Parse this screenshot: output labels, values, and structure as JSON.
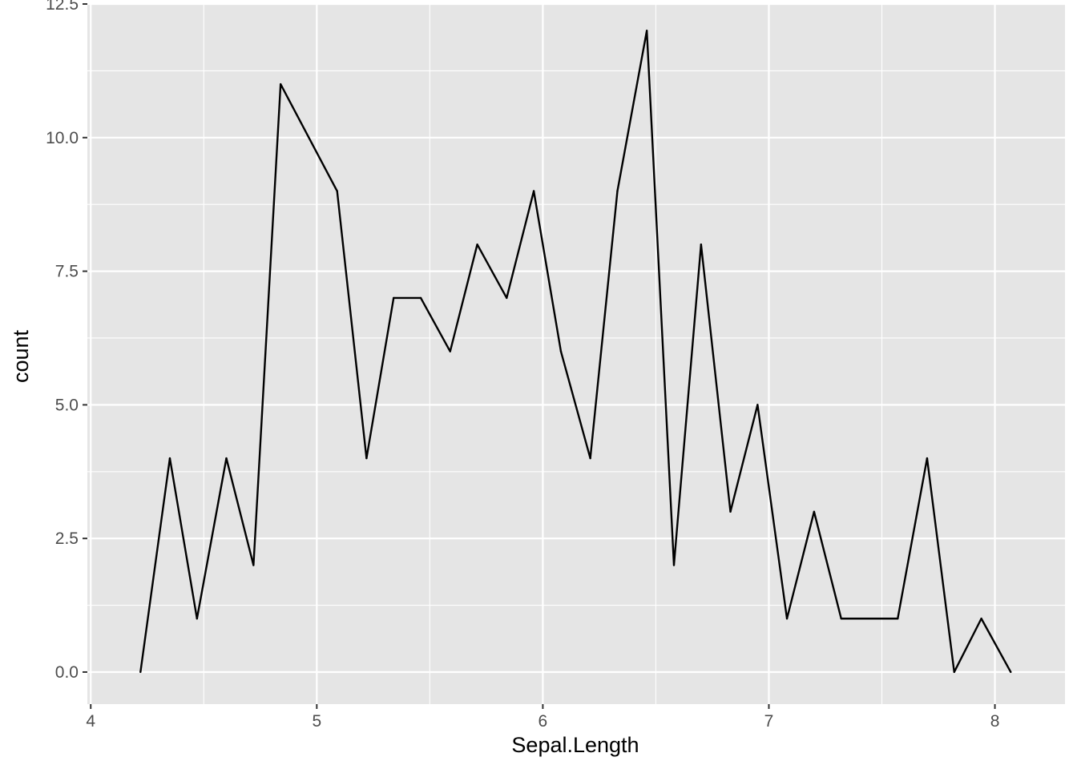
{
  "chart_data": {
    "type": "line",
    "title": "",
    "xlabel": "Sepal.Length",
    "ylabel": "count",
    "xlim": [
      3.985,
      8.31
    ],
    "ylim": [
      -0.6,
      12.5
    ],
    "x_ticks": [
      4,
      5,
      6,
      7,
      8
    ],
    "x_tick_labels": [
      "4",
      "5",
      "6",
      "7",
      "8"
    ],
    "y_ticks": [
      0,
      2.5,
      5,
      7.5,
      10,
      12.5
    ],
    "y_tick_labels": [
      "0.0",
      "2.5",
      "5.0",
      "7.5",
      "10.0",
      "12.5"
    ],
    "grid": true,
    "background": "#e5e5e5",
    "grid_color": "#ffffff",
    "line_color": "#000000",
    "series": [
      {
        "x": [
          4.22,
          4.35,
          4.47,
          4.6,
          4.72,
          4.84,
          5.09,
          5.22,
          5.34,
          5.46,
          5.59,
          5.71,
          5.84,
          5.96,
          6.08,
          6.21,
          6.33,
          6.46,
          6.58,
          6.7,
          6.83,
          6.95,
          7.08,
          7.2,
          7.32,
          7.45,
          7.57,
          7.7,
          7.82,
          7.94,
          8.07
        ],
        "y": [
          0,
          4,
          1,
          4,
          2,
          11,
          9,
          4,
          7,
          7,
          6,
          8,
          7,
          9,
          6,
          4,
          9,
          12,
          2,
          8,
          3,
          5,
          1,
          3,
          1,
          1,
          1,
          4,
          0,
          1,
          0
        ]
      }
    ]
  }
}
